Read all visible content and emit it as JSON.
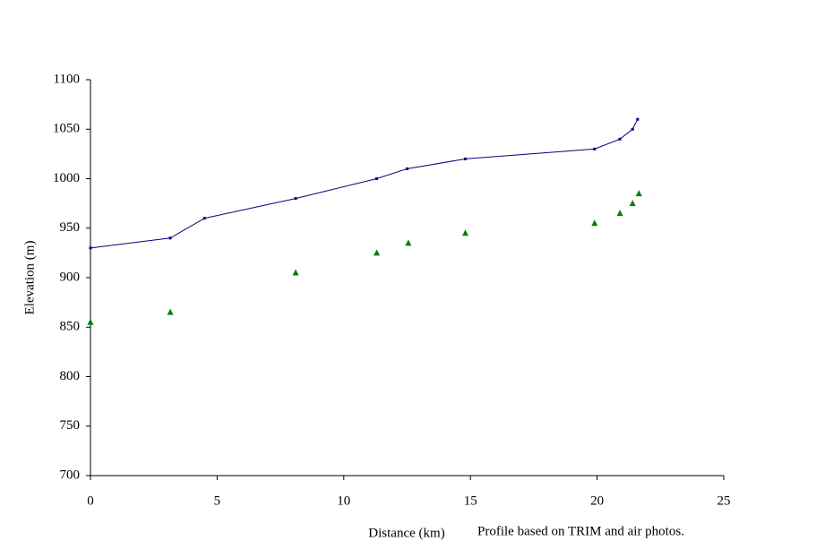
{
  "chart_data": {
    "type": "line",
    "ylabel": "Elevation (m)",
    "xlabel": "Distance (km)",
    "annotation": "Profile based on TRIM and air photos.",
    "xlim": [
      0,
      25
    ],
    "xticks": [
      0,
      5,
      10,
      15,
      20,
      25
    ],
    "ylim": [
      700,
      1100
    ],
    "yticks": [
      700,
      750,
      800,
      850,
      900,
      950,
      1000,
      1050,
      1100
    ],
    "grid": false,
    "series": [
      {
        "mode": "line",
        "color": "#000080",
        "x": [
          0,
          3.15,
          4.5,
          8.1,
          11.3,
          12.5,
          14.8,
          19.9,
          20.9,
          21.4,
          21.6
        ],
        "values": [
          930,
          940,
          960,
          980,
          1000,
          1010,
          1020,
          1030,
          1040,
          1050,
          1060
        ]
      },
      {
        "mode": "markers",
        "color": "#008000",
        "x": [
          0,
          3.15,
          8.1,
          11.3,
          12.55,
          14.8,
          19.9,
          20.9,
          21.4,
          21.65
        ],
        "values": [
          855,
          865,
          905,
          925,
          935,
          945,
          955,
          965,
          975,
          985
        ]
      }
    ]
  }
}
